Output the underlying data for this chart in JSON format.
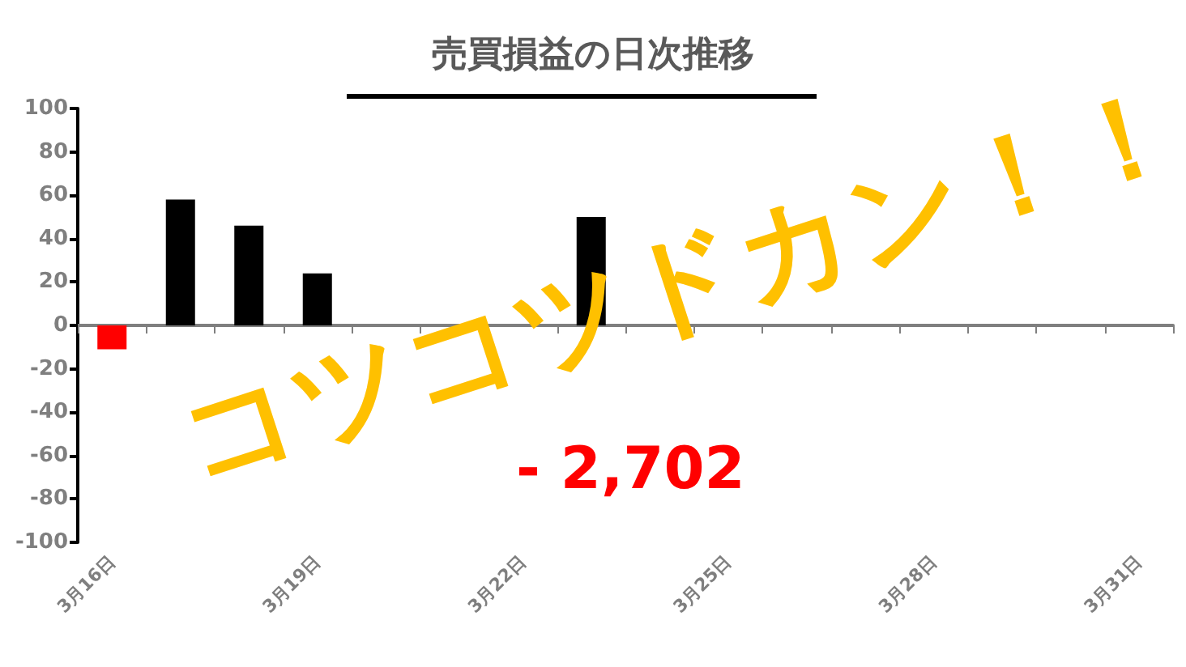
{
  "chart_data": {
    "type": "bar",
    "title": "売買損益の日次推移",
    "categories": [
      "3月16日",
      null,
      null,
      "3月19日",
      null,
      null,
      "3月22日",
      null,
      null,
      "3月25日",
      null,
      null,
      "3月28日",
      null,
      null,
      "3月31日"
    ],
    "values": [
      -11,
      58,
      46,
      24,
      null,
      null,
      null,
      50,
      null,
      null,
      null,
      null,
      null,
      null,
      null,
      null
    ],
    "colors": [
      "#ff0000",
      "#000000",
      "#000000",
      "#000000",
      null,
      null,
      null,
      "#000000",
      "#ff0000",
      null,
      null,
      null,
      null,
      null,
      null,
      null
    ],
    "ylim": [
      -100,
      100
    ],
    "yticks": [
      100,
      80,
      60,
      40,
      20,
      0,
      -20,
      -40,
      -60,
      -80,
      -100
    ],
    "annotations": [
      "コツコツドカン！！",
      "- 2,702"
    ]
  }
}
